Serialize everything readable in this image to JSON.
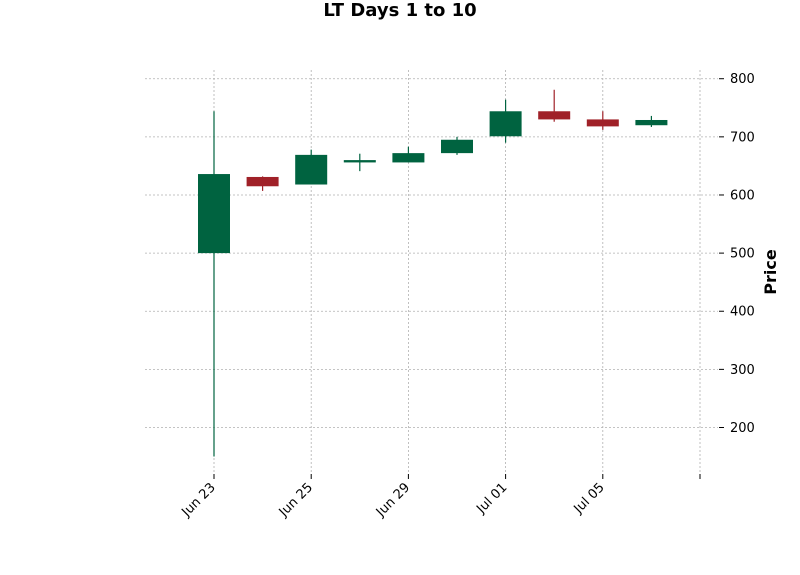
{
  "chart_data": {
    "type": "candlestick",
    "title": "LT Days 1 to 10",
    "xlabel": "",
    "ylabel": "Price",
    "ylim": [
      120,
      815
    ],
    "y_ticks": [
      200,
      300,
      400,
      500,
      600,
      700,
      800
    ],
    "x_tick_labels": [
      "Jun 23",
      "Jun 25",
      "Jun 29",
      "Jul 01",
      "Jul 05",
      ""
    ],
    "grid": true,
    "colors": {
      "up": "#006340",
      "down": "#a02128",
      "grid": "#b0b0b0"
    },
    "series": [
      {
        "categories": [
          "1",
          "2",
          "3",
          "4",
          "5",
          "6",
          "7",
          "8",
          "9",
          "10"
        ],
        "open": [
          500,
          631,
          618,
          656,
          656,
          672,
          701,
          744,
          730,
          720
        ],
        "high": [
          744,
          632,
          678,
          671,
          683,
          700,
          764,
          781,
          744,
          736
        ],
        "low": [
          150,
          607,
          618,
          641,
          656,
          669,
          690,
          726,
          712,
          717
        ],
        "close": [
          636,
          615,
          669,
          660,
          672,
          695,
          744,
          730,
          718,
          729
        ]
      }
    ]
  }
}
